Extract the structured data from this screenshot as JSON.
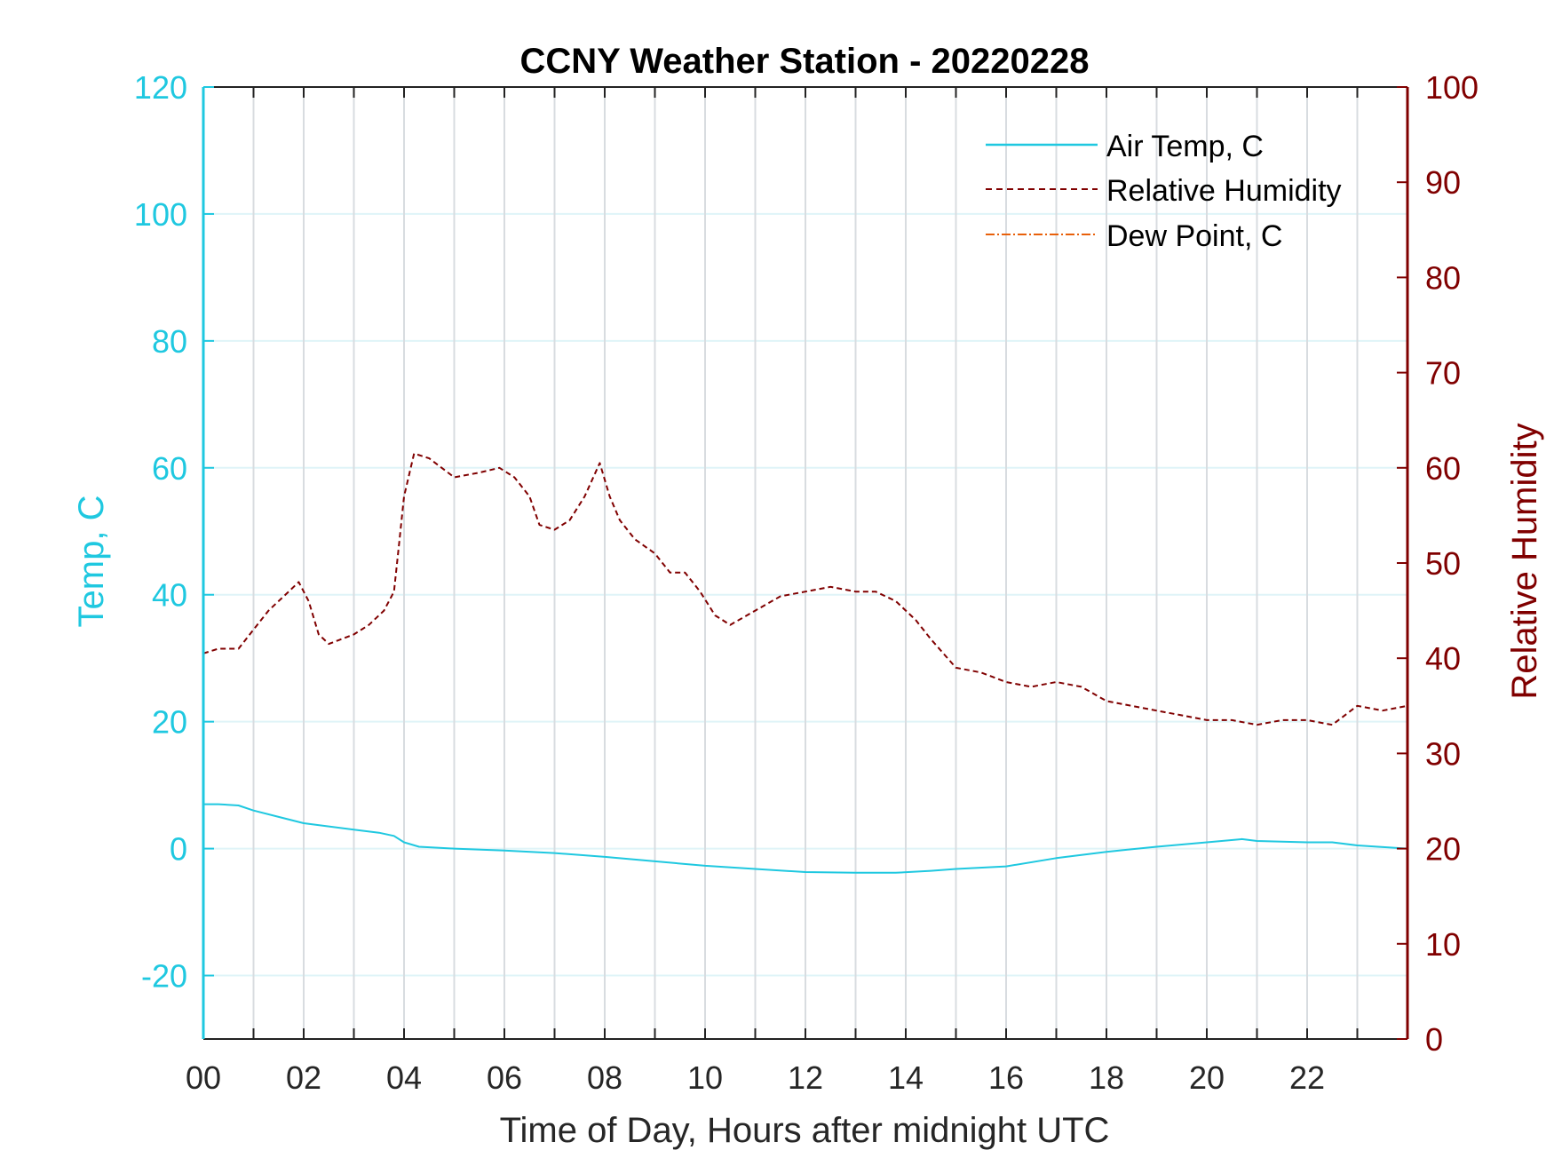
{
  "chart_data": {
    "type": "line",
    "title": "CCNY Weather Station - 20220228",
    "xlabel": "Time of Day, Hours after midnight UTC",
    "ylabel_left": "Temp, C",
    "ylabel_right": "Relative Humidity",
    "xlim": [
      0,
      24
    ],
    "ylim_left": [
      -30,
      120
    ],
    "ylim_right": [
      0,
      100
    ],
    "x_ticks": [
      0,
      2,
      4,
      6,
      8,
      10,
      12,
      14,
      16,
      18,
      20,
      22
    ],
    "x_tick_labels": [
      "00",
      "02",
      "04",
      "06",
      "08",
      "10",
      "12",
      "14",
      "16",
      "18",
      "20",
      "22"
    ],
    "y_left_ticks": [
      -20,
      0,
      20,
      40,
      60,
      80,
      100,
      120
    ],
    "y_left_tick_labels": [
      "-20",
      "0",
      "20",
      "40",
      "60",
      "80",
      "100",
      "120"
    ],
    "y_right_ticks": [
      0,
      10,
      20,
      30,
      40,
      50,
      60,
      70,
      80,
      90,
      100
    ],
    "y_right_tick_labels": [
      "0",
      "10",
      "20",
      "30",
      "40",
      "50",
      "60",
      "70",
      "80",
      "90",
      "100"
    ],
    "grid": "vertical-hourly",
    "legend_position": "top-right",
    "colors": {
      "temp": "#1fc8e0",
      "humidity": "#800000",
      "dewpoint": "#e8600a",
      "axis": "#222222",
      "grid": "#d8dce0",
      "hgrid": "#dff4f8"
    },
    "series": [
      {
        "name": "Air Temp, C",
        "axis": "left",
        "style": "solid",
        "x": [
          0,
          0.3,
          0.7,
          1.0,
          1.5,
          2.0,
          2.5,
          3.0,
          3.5,
          3.8,
          4.0,
          4.3,
          5.0,
          6.0,
          7.0,
          8.0,
          9.0,
          10.0,
          11.0,
          12.0,
          13.0,
          13.8,
          14.5,
          15.0,
          16.0,
          17.0,
          18.0,
          19.0,
          20.0,
          20.7,
          21.0,
          22.0,
          22.5,
          23.0,
          24.0
        ],
        "values": [
          7.0,
          7.0,
          6.8,
          6.0,
          5.0,
          4.0,
          3.5,
          3.0,
          2.5,
          2.0,
          1.0,
          0.3,
          0.0,
          -0.3,
          -0.7,
          -1.3,
          -2.0,
          -2.7,
          -3.2,
          -3.7,
          -3.8,
          -3.8,
          -3.5,
          -3.2,
          -2.8,
          -1.5,
          -0.5,
          0.3,
          1.0,
          1.5,
          1.2,
          1.0,
          1.0,
          0.5,
          0.0
        ]
      },
      {
        "name": "Relative Humidity",
        "axis": "right",
        "style": "dashed",
        "x": [
          0,
          0.3,
          0.7,
          1.0,
          1.3,
          1.7,
          1.9,
          2.1,
          2.3,
          2.5,
          3.0,
          3.3,
          3.6,
          3.8,
          3.9,
          4.0,
          4.2,
          4.5,
          5.0,
          5.5,
          5.9,
          6.2,
          6.5,
          6.7,
          7.0,
          7.3,
          7.6,
          7.9,
          8.1,
          8.3,
          8.6,
          9.0,
          9.3,
          9.6,
          9.9,
          10.2,
          10.5,
          11.0,
          11.5,
          12.0,
          12.5,
          13.0,
          13.4,
          13.8,
          14.2,
          14.5,
          15.0,
          15.5,
          16.0,
          16.5,
          17.0,
          17.5,
          18.0,
          18.5,
          19.0,
          19.5,
          20.0,
          20.5,
          21.0,
          21.5,
          22.0,
          22.5,
          23.0,
          23.5,
          24.0
        ],
        "values": [
          40.5,
          41.0,
          41.0,
          43.0,
          45.0,
          47.0,
          48.0,
          46.0,
          42.5,
          41.5,
          42.5,
          43.5,
          45.0,
          47.0,
          52.0,
          57.0,
          61.5,
          61.0,
          59.0,
          59.5,
          60.0,
          59.0,
          57.0,
          54.0,
          53.5,
          54.5,
          57.0,
          60.5,
          57.0,
          54.5,
          52.5,
          51.0,
          49.0,
          49.0,
          47.0,
          44.5,
          43.5,
          45.0,
          46.5,
          47.0,
          47.5,
          47.0,
          47.0,
          46.0,
          44.0,
          42.0,
          39.0,
          38.5,
          37.5,
          37.0,
          37.5,
          37.0,
          35.5,
          35.0,
          34.5,
          34.0,
          33.5,
          33.5,
          33.0,
          33.5,
          33.5,
          33.0,
          35.0,
          34.5,
          35.0
        ]
      },
      {
        "name": "Dew Point, C",
        "axis": "left",
        "style": "dash-dot",
        "x": [],
        "values": []
      }
    ]
  }
}
